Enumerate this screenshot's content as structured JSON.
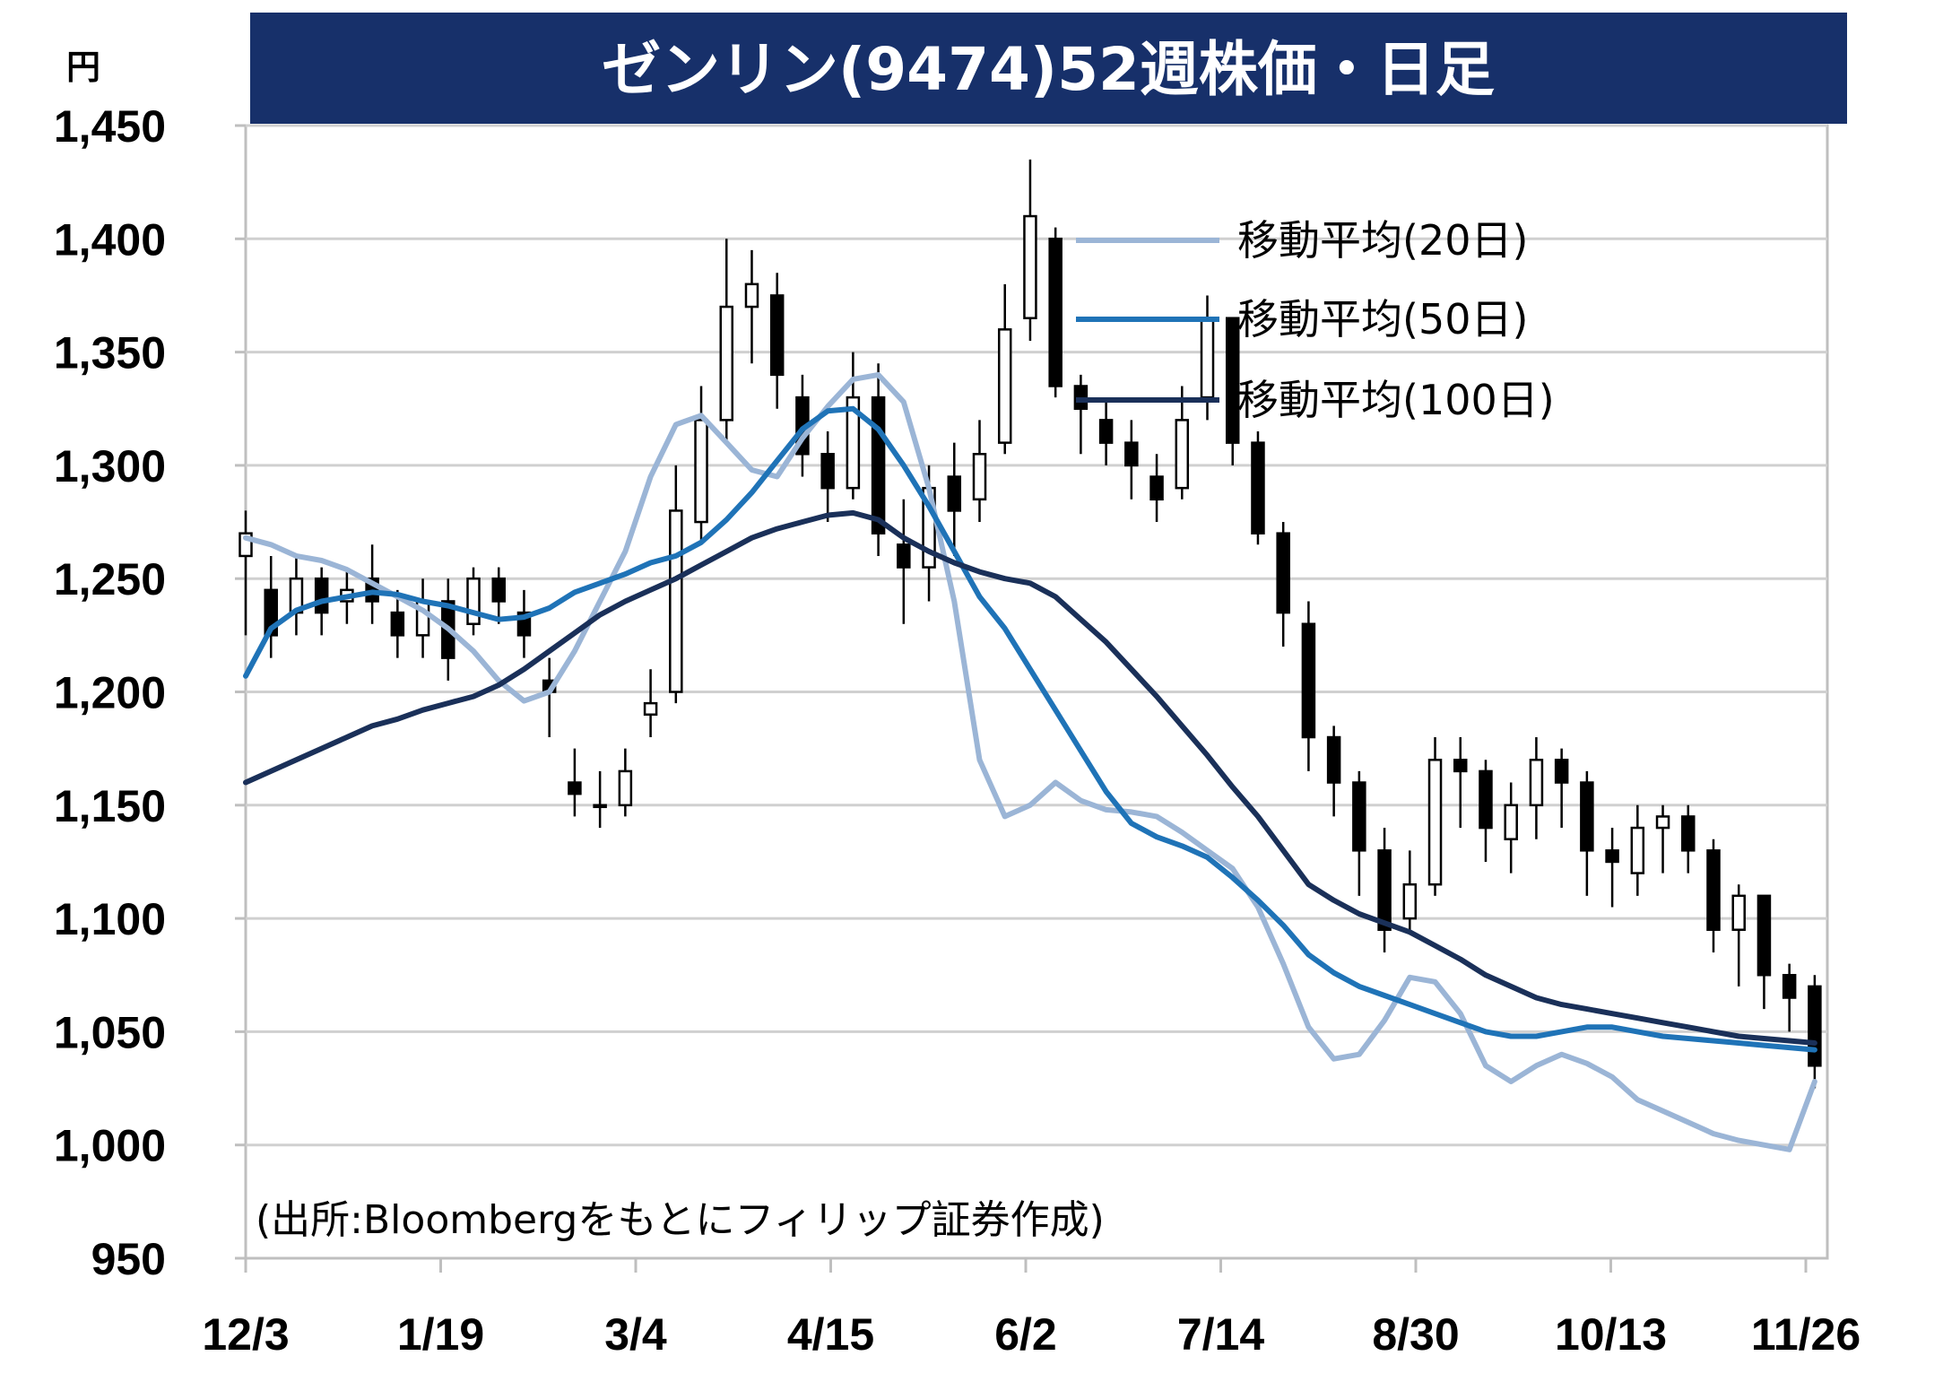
{
  "chart_data": {
    "type": "candlestick",
    "title": "ゼンリン(9474)52週株価・日足",
    "y_unit": "円",
    "source": "(出所:Bloombergをもとにフィリップ証券作成)",
    "ylim": [
      950,
      1450
    ],
    "y_ticks": [
      "1,450",
      "1,400",
      "1,350",
      "1,300",
      "1,250",
      "1,200",
      "1,150",
      "1,100",
      "1,050",
      "1,000",
      "950"
    ],
    "y_tick_values": [
      1450,
      1400,
      1350,
      1300,
      1250,
      1200,
      1150,
      1100,
      1050,
      1000,
      950
    ],
    "x_ticks": [
      "12/3",
      "1/19",
      "3/4",
      "4/15",
      "6/2",
      "7/14",
      "8/30",
      "10/13",
      "11/26"
    ],
    "grid": true,
    "legend_position": "top-right",
    "x": [
      0,
      4,
      8,
      12,
      16,
      20,
      24,
      28,
      32,
      36,
      40,
      44,
      48,
      52,
      56,
      60,
      64,
      68,
      72,
      76,
      80,
      84,
      88,
      92,
      96,
      100,
      104,
      108,
      112,
      116,
      120,
      124,
      128,
      132,
      136,
      140,
      144,
      148,
      152,
      156,
      160,
      164,
      168,
      172,
      176,
      180,
      184,
      188,
      192,
      196,
      200,
      204,
      208,
      212,
      216,
      220,
      224,
      228,
      232,
      236,
      240,
      244,
      248
    ],
    "close": [
      1270,
      1225,
      1250,
      1235,
      1245,
      1240,
      1225,
      1240,
      1215,
      1250,
      1240,
      1225,
      1200,
      1155,
      1150,
      1165,
      1195,
      1280,
      1320,
      1370,
      1380,
      1340,
      1305,
      1290,
      1330,
      1270,
      1255,
      1290,
      1280,
      1305,
      1360,
      1410,
      1335,
      1325,
      1310,
      1300,
      1285,
      1320,
      1365,
      1310,
      1270,
      1235,
      1180,
      1160,
      1130,
      1095,
      1115,
      1170,
      1165,
      1140,
      1150,
      1170,
      1160,
      1130,
      1125,
      1140,
      1145,
      1130,
      1095,
      1110,
      1075,
      1065,
      1035
    ],
    "open": [
      1260,
      1245,
      1235,
      1250,
      1240,
      1250,
      1235,
      1225,
      1240,
      1230,
      1250,
      1235,
      1205,
      1160,
      1150,
      1150,
      1190,
      1200,
      1275,
      1320,
      1370,
      1375,
      1330,
      1305,
      1290,
      1330,
      1265,
      1255,
      1295,
      1285,
      1310,
      1365,
      1400,
      1335,
      1320,
      1310,
      1295,
      1290,
      1330,
      1365,
      1310,
      1270,
      1230,
      1180,
      1160,
      1130,
      1100,
      1115,
      1170,
      1165,
      1135,
      1150,
      1170,
      1160,
      1130,
      1120,
      1140,
      1145,
      1130,
      1095,
      1110,
      1075,
      1070
    ],
    "high": [
      1280,
      1260,
      1260,
      1255,
      1255,
      1265,
      1245,
      1250,
      1250,
      1255,
      1255,
      1245,
      1215,
      1175,
      1165,
      1175,
      1210,
      1300,
      1335,
      1400,
      1395,
      1385,
      1340,
      1315,
      1350,
      1345,
      1285,
      1300,
      1310,
      1320,
      1380,
      1435,
      1405,
      1340,
      1330,
      1320,
      1305,
      1335,
      1375,
      1365,
      1315,
      1275,
      1240,
      1185,
      1165,
      1140,
      1130,
      1180,
      1180,
      1170,
      1160,
      1180,
      1175,
      1165,
      1140,
      1150,
      1150,
      1150,
      1135,
      1115,
      1110,
      1080,
      1075
    ],
    "low": [
      1225,
      1215,
      1225,
      1225,
      1230,
      1230,
      1215,
      1215,
      1205,
      1225,
      1230,
      1215,
      1180,
      1145,
      1140,
      1145,
      1180,
      1195,
      1265,
      1310,
      1345,
      1325,
      1295,
      1275,
      1285,
      1260,
      1230,
      1240,
      1260,
      1275,
      1305,
      1355,
      1330,
      1305,
      1300,
      1285,
      1275,
      1285,
      1320,
      1300,
      1265,
      1220,
      1165,
      1145,
      1110,
      1085,
      1095,
      1110,
      1140,
      1125,
      1120,
      1135,
      1140,
      1110,
      1105,
      1110,
      1120,
      1120,
      1085,
      1070,
      1060,
      1050,
      1025
    ],
    "series": [
      {
        "name": "移動平均(20日)",
        "color": "#9bb5d6",
        "x": [
          0,
          4,
          8,
          12,
          16,
          20,
          24,
          28,
          32,
          36,
          40,
          44,
          48,
          52,
          56,
          60,
          64,
          68,
          72,
          76,
          80,
          84,
          88,
          92,
          96,
          100,
          104,
          108,
          112,
          116,
          120,
          124,
          128,
          132,
          136,
          140,
          144,
          148,
          152,
          156,
          160,
          164,
          168,
          172,
          176,
          180,
          184,
          188,
          192,
          196,
          200,
          204,
          208,
          212,
          216,
          220,
          224,
          228,
          232,
          236,
          240,
          244,
          248
        ],
        "values": [
          1268,
          1265,
          1260,
          1258,
          1254,
          1248,
          1242,
          1236,
          1228,
          1218,
          1205,
          1196,
          1200,
          1218,
          1240,
          1262,
          1295,
          1318,
          1322,
          1310,
          1298,
          1295,
          1312,
          1326,
          1338,
          1340,
          1328,
          1290,
          1240,
          1170,
          1145,
          1150,
          1160,
          1152,
          1148,
          1147,
          1145,
          1138,
          1130,
          1122,
          1105,
          1080,
          1052,
          1038,
          1040,
          1055,
          1074,
          1072,
          1058,
          1035,
          1028,
          1035,
          1040,
          1036,
          1030,
          1020,
          1015,
          1010,
          1005,
          1002,
          1000,
          998,
          1028
        ]
      },
      {
        "name": "移動平均(50日)",
        "color": "#1f73b7",
        "x": [
          0,
          4,
          8,
          12,
          16,
          20,
          24,
          28,
          32,
          36,
          40,
          44,
          48,
          52,
          56,
          60,
          64,
          68,
          72,
          76,
          80,
          84,
          88,
          92,
          96,
          100,
          104,
          108,
          112,
          116,
          120,
          124,
          128,
          132,
          136,
          140,
          144,
          148,
          152,
          156,
          160,
          164,
          168,
          172,
          176,
          180,
          184,
          188,
          192,
          196,
          200,
          204,
          208,
          212,
          216,
          220,
          224,
          228,
          232,
          236,
          240,
          244,
          248
        ],
        "values": [
          1207,
          1228,
          1236,
          1240,
          1242,
          1244,
          1243,
          1240,
          1238,
          1235,
          1232,
          1233,
          1237,
          1244,
          1248,
          1252,
          1257,
          1260,
          1266,
          1276,
          1288,
          1302,
          1316,
          1324,
          1325,
          1316,
          1300,
          1282,
          1262,
          1242,
          1228,
          1210,
          1192,
          1174,
          1156,
          1142,
          1136,
          1132,
          1127,
          1118,
          1108,
          1097,
          1084,
          1076,
          1070,
          1066,
          1062,
          1058,
          1054,
          1050,
          1048,
          1048,
          1050,
          1052,
          1052,
          1050,
          1048,
          1047,
          1046,
          1045,
          1044,
          1043,
          1042
        ]
      },
      {
        "name": "移動平均(100日)",
        "color": "#1a3059",
        "x": [
          0,
          4,
          8,
          12,
          16,
          20,
          24,
          28,
          32,
          36,
          40,
          44,
          48,
          52,
          56,
          60,
          64,
          68,
          72,
          76,
          80,
          84,
          88,
          92,
          96,
          100,
          104,
          108,
          112,
          116,
          120,
          124,
          128,
          132,
          136,
          140,
          144,
          148,
          152,
          156,
          160,
          164,
          168,
          172,
          176,
          180,
          184,
          188,
          192,
          196,
          200,
          204,
          208,
          212,
          216,
          220,
          224,
          228,
          232,
          236,
          240,
          244,
          248
        ],
        "values": [
          1160,
          1165,
          1170,
          1175,
          1180,
          1185,
          1188,
          1192,
          1195,
          1198,
          1203,
          1210,
          1218,
          1226,
          1234,
          1240,
          1245,
          1250,
          1256,
          1262,
          1268,
          1272,
          1275,
          1278,
          1279,
          1276,
          1268,
          1262,
          1257,
          1253,
          1250,
          1248,
          1242,
          1232,
          1222,
          1210,
          1198,
          1185,
          1172,
          1158,
          1145,
          1130,
          1115,
          1108,
          1102,
          1098,
          1094,
          1088,
          1082,
          1075,
          1070,
          1065,
          1062,
          1060,
          1058,
          1056,
          1054,
          1052,
          1050,
          1048,
          1047,
          1046,
          1045
        ]
      }
    ]
  }
}
